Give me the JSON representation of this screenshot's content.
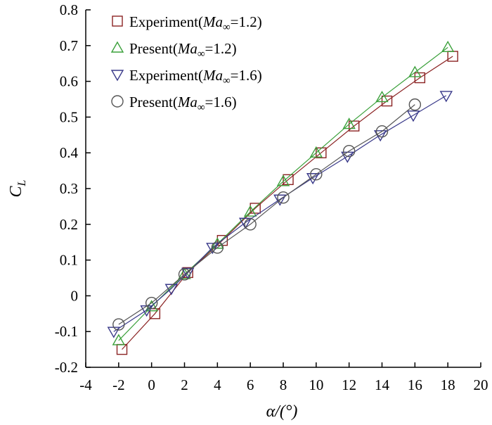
{
  "chart_data": {
    "type": "line",
    "xlabel": "α/(°)",
    "ylabel": "C_L",
    "xlim": [
      -4,
      20
    ],
    "ylim": [
      -0.2,
      0.8
    ],
    "xticks": [
      -4,
      -2,
      0,
      2,
      4,
      6,
      8,
      10,
      12,
      14,
      16,
      18,
      20
    ],
    "yticks": [
      -0.2,
      -0.1,
      0,
      0.1,
      0.2,
      0.3,
      0.4,
      0.5,
      0.6,
      0.7,
      0.8
    ],
    "xtick_labels": [
      "-4",
      "-2",
      "0",
      "2",
      "4",
      "6",
      "8",
      "10",
      "12",
      "14",
      "16",
      "18",
      "20"
    ],
    "ytick_labels": [
      "-0.2",
      "-0.1",
      "0",
      "0.1",
      "0.2",
      "0.3",
      "0.4",
      "0.5",
      "0.6",
      "0.7",
      "0.8"
    ],
    "grid": false,
    "legend_position": "top-left",
    "series": [
      {
        "name": "Experiment(Ma∞=1.2)",
        "label_prefix": "Experiment(",
        "label_italic": "Ma",
        "label_sub": "∞",
        "label_suffix": "=1.2)",
        "marker": "square",
        "color": "#8b2323",
        "x": [
          -1.8,
          0.2,
          2.2,
          4.3,
          6.3,
          8.3,
          10.3,
          12.3,
          14.3,
          16.3,
          18.3
        ],
        "y": [
          -0.15,
          -0.05,
          0.065,
          0.155,
          0.245,
          0.325,
          0.4,
          0.475,
          0.545,
          0.61,
          0.67
        ]
      },
      {
        "name": "Present(Ma∞=1.2)",
        "label_prefix": "Present(",
        "label_italic": "Ma",
        "label_sub": "∞",
        "label_suffix": "=1.2)",
        "marker": "triangle-up",
        "color": "#3aa03a",
        "x": [
          -2,
          0,
          2,
          4,
          6,
          8,
          10,
          12,
          14,
          16,
          18
        ],
        "y": [
          -0.125,
          -0.03,
          0.06,
          0.145,
          0.235,
          0.32,
          0.4,
          0.48,
          0.555,
          0.625,
          0.695
        ]
      },
      {
        "name": "Experiment(Ma∞=1.6)",
        "label_prefix": "Experiment(",
        "label_italic": "Ma",
        "label_sub": "∞",
        "label_suffix": "=1.6)",
        "marker": "triangle-down",
        "color": "#3a3a8a",
        "x": [
          -2.3,
          -0.3,
          1.2,
          2.2,
          3.7,
          5.7,
          7.8,
          9.8,
          11.9,
          13.9,
          15.9,
          17.9
        ],
        "y": [
          -0.1,
          -0.04,
          0.02,
          0.065,
          0.135,
          0.205,
          0.27,
          0.33,
          0.39,
          0.45,
          0.505,
          0.56
        ]
      },
      {
        "name": "Present(Ma∞=1.6)",
        "label_prefix": "Present(",
        "label_italic": "Ma",
        "label_sub": "∞",
        "label_suffix": "=1.6)",
        "marker": "circle",
        "color": "#555555",
        "x": [
          -2,
          0,
          2,
          4,
          6,
          8,
          10,
          12,
          14,
          16
        ],
        "y": [
          -0.08,
          -0.02,
          0.06,
          0.135,
          0.2,
          0.275,
          0.34,
          0.405,
          0.46,
          0.535
        ]
      }
    ]
  }
}
